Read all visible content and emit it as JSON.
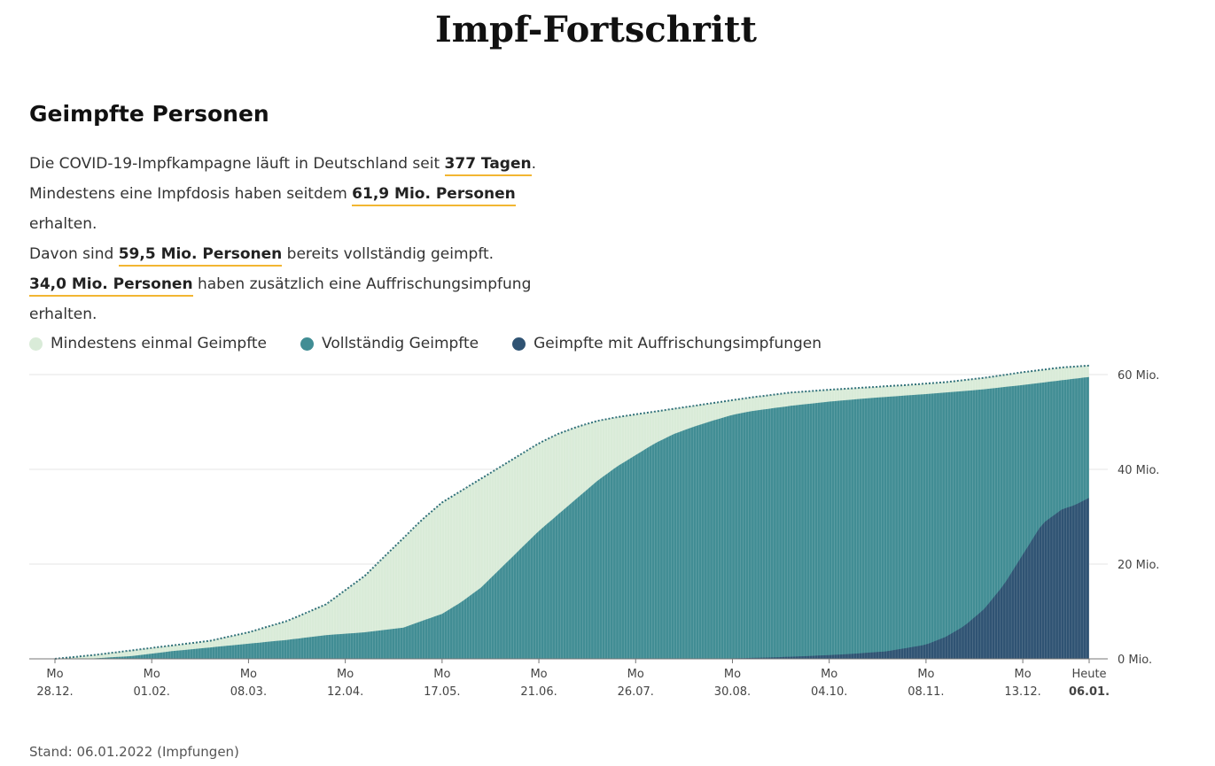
{
  "page": {
    "title": "Impf-Fortschritt",
    "section_title": "Geimpfte Personen",
    "footer": "Stand: 06.01.2022 (Impfungen)"
  },
  "summary": {
    "line1_pre": "Die COVID-19-Impfkampagne läuft in Deutschland seit ",
    "line1_value": "377 Tagen",
    "line1_post": ".",
    "line2_pre": "Mindestens eine Impfdosis haben seitdem ",
    "line2_value": "61,9 Mio. Personen",
    "line2_post": " erhalten.",
    "line3_pre": "Davon sind ",
    "line3_value": "59,5 Mio. Personen",
    "line3_post": " bereits vollständig geimpft.",
    "line4_value": "34,0 Mio. Personen",
    "line4_post": " haben zusätzlich eine Auffrischungsimpfung",
    "line5": "erhalten."
  },
  "colors": {
    "first_dose": "#d9ebd8",
    "full": "#418d94",
    "booster": "#2f5373",
    "dotted_line": "#2e6f78",
    "highlight": "#f2b632"
  },
  "chart_data": {
    "type": "area",
    "x_unit": "days since 28.12.2020",
    "ylim": [
      0,
      60
    ],
    "y_ticks": [
      {
        "value": 0,
        "label": "0 Mio."
      },
      {
        "value": 20,
        "label": "20 Mio."
      },
      {
        "value": 40,
        "label": "40 Mio."
      },
      {
        "value": 60,
        "label": "60 Mio."
      }
    ],
    "x_ticks": [
      {
        "day": 0,
        "weekday": "Mo",
        "date": "28.12."
      },
      {
        "day": 35,
        "weekday": "Mo",
        "date": "01.02."
      },
      {
        "day": 70,
        "weekday": "Mo",
        "date": "08.03."
      },
      {
        "day": 105,
        "weekday": "Mo",
        "date": "12.04."
      },
      {
        "day": 140,
        "weekday": "Mo",
        "date": "17.05."
      },
      {
        "day": 175,
        "weekday": "Mo",
        "date": "21.06."
      },
      {
        "day": 210,
        "weekday": "Mo",
        "date": "26.07."
      },
      {
        "day": 245,
        "weekday": "Mo",
        "date": "30.08."
      },
      {
        "day": 280,
        "weekday": "Mo",
        "date": "04.10."
      },
      {
        "day": 315,
        "weekday": "Mo",
        "date": "08.11."
      },
      {
        "day": 350,
        "weekday": "Mo",
        "date": "13.12."
      },
      {
        "day": 374,
        "weekday": "Heute",
        "date": "06.01."
      }
    ],
    "series": [
      {
        "name": "Mindestens einmal Geimpfte",
        "x": [
          0,
          14,
          28,
          42,
          56,
          70,
          84,
          98,
          112,
          119,
          126,
          133,
          140,
          147,
          154,
          161,
          168,
          175,
          182,
          189,
          196,
          203,
          210,
          224,
          238,
          252,
          266,
          280,
          294,
          308,
          322,
          336,
          350,
          364,
          374
        ],
        "values": [
          0,
          0.8,
          1.8,
          2.8,
          3.8,
          5.6,
          8.0,
          11.5,
          17.5,
          21.5,
          25.5,
          29.5,
          33.0,
          35.5,
          38.0,
          40.5,
          43.0,
          45.5,
          47.5,
          49.0,
          50.2,
          51.0,
          51.6,
          52.8,
          54.0,
          55.2,
          56.2,
          56.8,
          57.3,
          57.8,
          58.4,
          59.3,
          60.5,
          61.5,
          61.9
        ]
      },
      {
        "name": "Vollständig Geimpfte",
        "x": [
          0,
          14,
          28,
          42,
          56,
          70,
          84,
          98,
          112,
          126,
          140,
          147,
          154,
          161,
          168,
          175,
          182,
          189,
          196,
          203,
          210,
          217,
          224,
          231,
          238,
          245,
          252,
          266,
          280,
          294,
          308,
          322,
          336,
          350,
          364,
          374
        ],
        "values": [
          0,
          0.1,
          0.6,
          1.6,
          2.4,
          3.2,
          4.0,
          5.0,
          5.6,
          6.6,
          9.5,
          12.0,
          15.0,
          19.0,
          23.0,
          27.0,
          30.5,
          34.0,
          37.5,
          40.5,
          43.0,
          45.5,
          47.5,
          49.0,
          50.3,
          51.5,
          52.3,
          53.4,
          54.3,
          55.0,
          55.6,
          56.2,
          56.9,
          57.8,
          58.8,
          59.5
        ]
      },
      {
        "name": "Geimpfte mit Auffrischungsimpfungen",
        "x": [
          0,
          231,
          245,
          259,
          273,
          287,
          301,
          315,
          322,
          329,
          336,
          343,
          350,
          357,
          364,
          369,
          374
        ],
        "values": [
          0,
          0,
          0.1,
          0.3,
          0.6,
          1.0,
          1.6,
          3.0,
          4.6,
          7.0,
          10.5,
          15.5,
          22.0,
          28.5,
          31.5,
          32.5,
          34.0
        ]
      }
    ],
    "legend_position": "top-left",
    "grid": true
  }
}
